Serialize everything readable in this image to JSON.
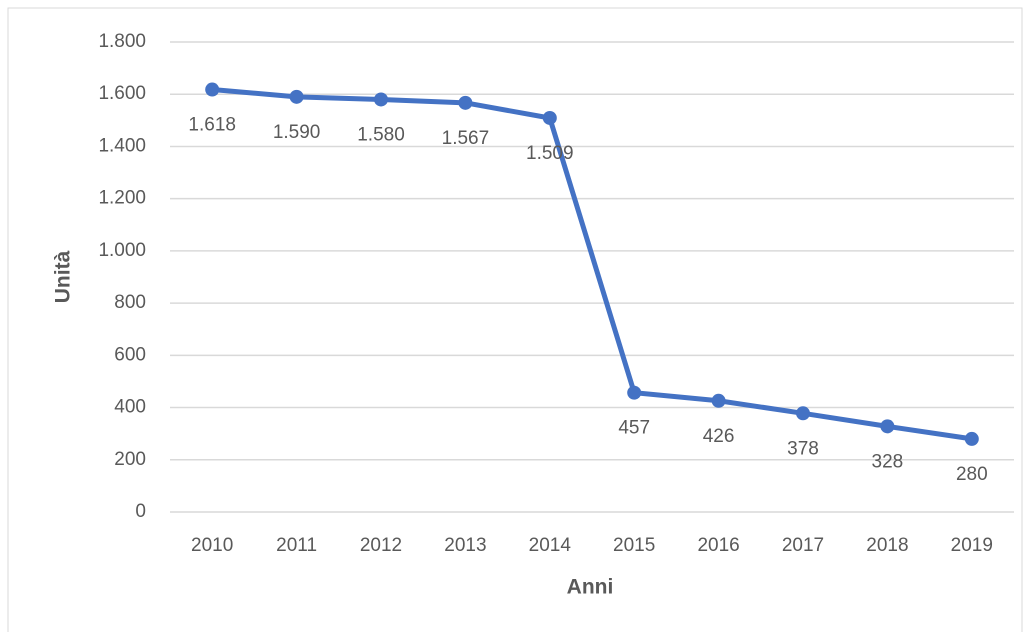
{
  "chart_data": {
    "type": "line",
    "x_label": "Anni",
    "y_label": "Unità",
    "categories": [
      "2010",
      "2011",
      "2012",
      "2013",
      "2014",
      "2015",
      "2016",
      "2017",
      "2018",
      "2019"
    ],
    "series": [
      {
        "name": "Unità",
        "color": "#4472c4",
        "values": [
          1618,
          1590,
          1580,
          1567,
          1509,
          457,
          426,
          378,
          328,
          280
        ],
        "value_labels": [
          "1.618",
          "1.590",
          "1.580",
          "1.567",
          "1.509",
          "457",
          "426",
          "378",
          "328",
          "280"
        ]
      }
    ],
    "ylim": [
      0,
      1800
    ],
    "yticks": [
      0,
      200,
      400,
      600,
      800,
      {
        "value": 1000,
        "label": "1.000"
      },
      {
        "value": 1200,
        "label": "1.200"
      },
      {
        "value": 1400,
        "label": "1.400"
      },
      {
        "value": 1600,
        "label": "1.600"
      },
      {
        "value": 1800,
        "label": "1.800"
      }
    ],
    "grid": true
  }
}
